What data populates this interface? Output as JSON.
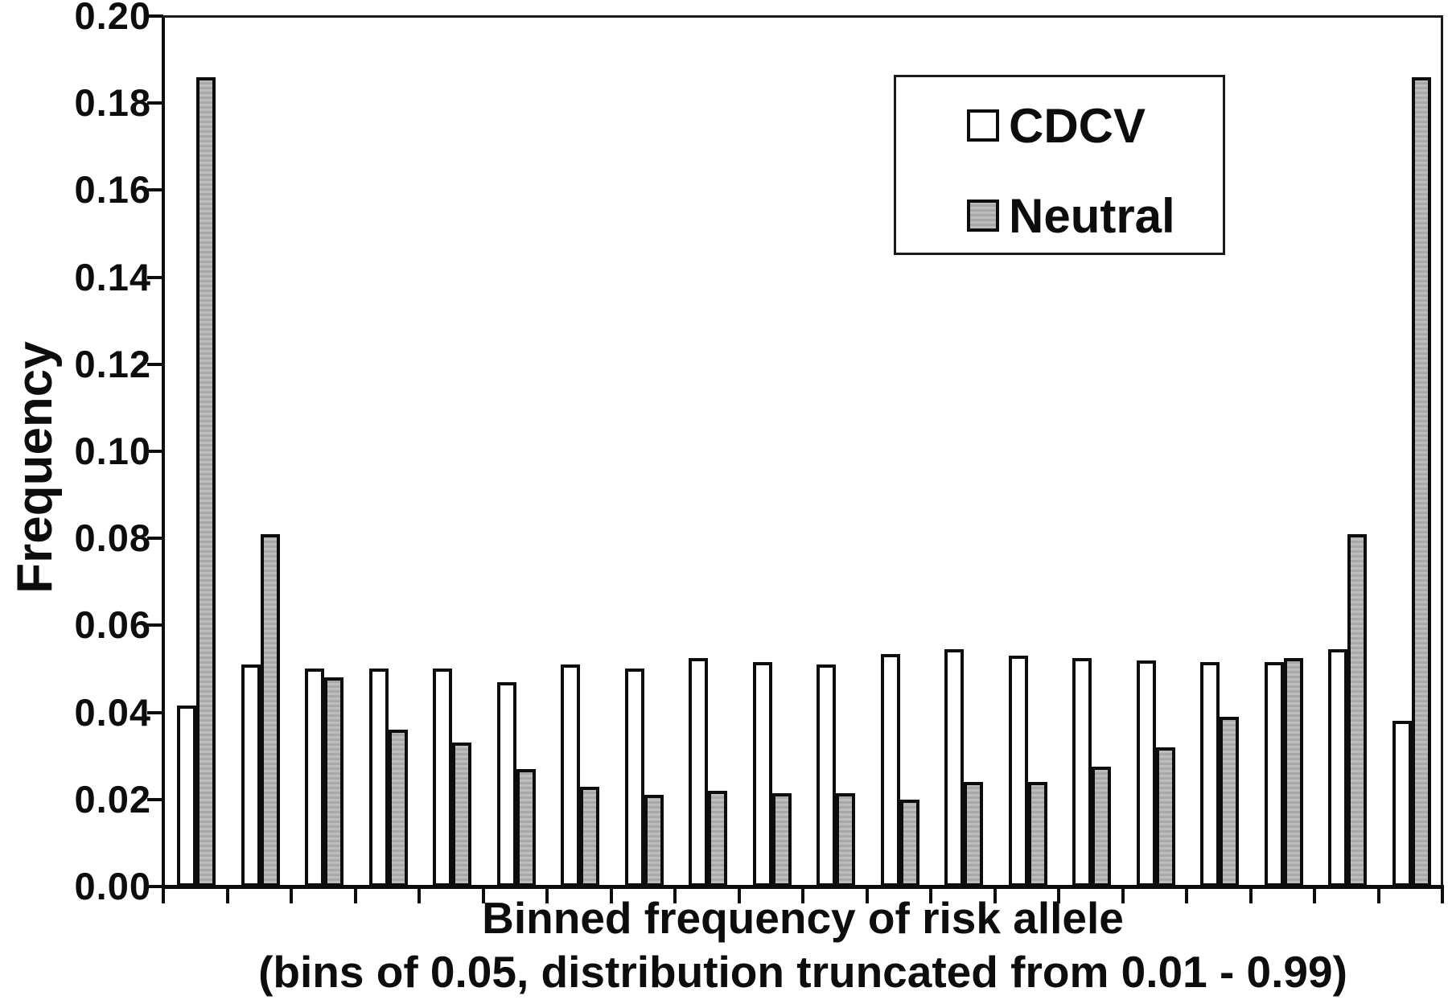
{
  "chart_data": {
    "type": "bar",
    "title": "",
    "ylabel": "Frequency",
    "xlabel_line1": "Binned frequency of risk allele",
    "xlabel_line2": "(bins of 0.05, distribution truncated from 0.01 - 0.99)",
    "ylim": [
      0,
      0.2
    ],
    "y_tick_step": 0.02,
    "y_tick_labels": [
      "0.20",
      "0.18",
      "0.16",
      "0.14",
      "0.12",
      "0.10",
      "0.08",
      "0.06",
      "0.04",
      "0.02",
      "0.00"
    ],
    "n_bins": 20,
    "x_tick_labels": [],
    "grid": false,
    "series": [
      {
        "name": "CDCV",
        "fill": "#ffffff",
        "values": [
          0.0415,
          0.051,
          0.05,
          0.05,
          0.05,
          0.047,
          0.051,
          0.05,
          0.0525,
          0.0515,
          0.051,
          0.0535,
          0.0545,
          0.053,
          0.0525,
          0.052,
          0.0515,
          0.0515,
          0.0545,
          0.038
        ]
      },
      {
        "name": "Neutral",
        "fill": "#b2b2b2",
        "values": [
          0.186,
          0.081,
          0.048,
          0.036,
          0.033,
          0.027,
          0.023,
          0.021,
          0.022,
          0.0215,
          0.0215,
          0.02,
          0.024,
          0.024,
          0.0275,
          0.032,
          0.039,
          0.0525,
          0.081,
          0.186
        ]
      }
    ],
    "legend": {
      "position": "top-right",
      "items": [
        {
          "label": "CDCV",
          "swatch": "white"
        },
        {
          "label": "Neutral",
          "swatch": "gray"
        }
      ]
    }
  },
  "colors": {
    "bar_border": "#0d0d0d",
    "axis": "#0d0d0d",
    "cdcv_fill": "#ffffff",
    "neutral_fill": "#b2b2b2",
    "background": "#ffffff"
  }
}
